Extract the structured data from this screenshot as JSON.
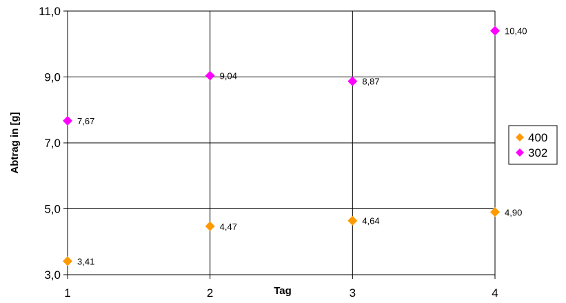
{
  "chart_data": {
    "type": "scatter",
    "xlabel": "Tag",
    "ylabel": "Abtrag in [g]",
    "xlim": [
      1,
      4
    ],
    "ylim": [
      3.0,
      11.0
    ],
    "x_ticks": [
      "1",
      "2",
      "3",
      "4"
    ],
    "y_ticks": [
      "3,0",
      "5,0",
      "7,0",
      "9,0",
      "11,0"
    ],
    "grid": true,
    "legend_position": "right",
    "series": [
      {
        "name": "400",
        "color": "#FF9900",
        "marker": "diamond",
        "points": [
          {
            "x": 1,
            "y": 3.41,
            "label": "3,41"
          },
          {
            "x": 2,
            "y": 4.47,
            "label": "4,47"
          },
          {
            "x": 3,
            "y": 4.64,
            "label": "4,64"
          },
          {
            "x": 4,
            "y": 4.9,
            "label": "4,90"
          }
        ]
      },
      {
        "name": "302",
        "color": "#FF00FF",
        "marker": "diamond",
        "points": [
          {
            "x": 1,
            "y": 7.67,
            "label": "7,67"
          },
          {
            "x": 2,
            "y": 9.04,
            "label": "9,04"
          },
          {
            "x": 3,
            "y": 8.87,
            "label": "8,87"
          },
          {
            "x": 4,
            "y": 10.4,
            "label": "10,40"
          }
        ]
      }
    ]
  }
}
